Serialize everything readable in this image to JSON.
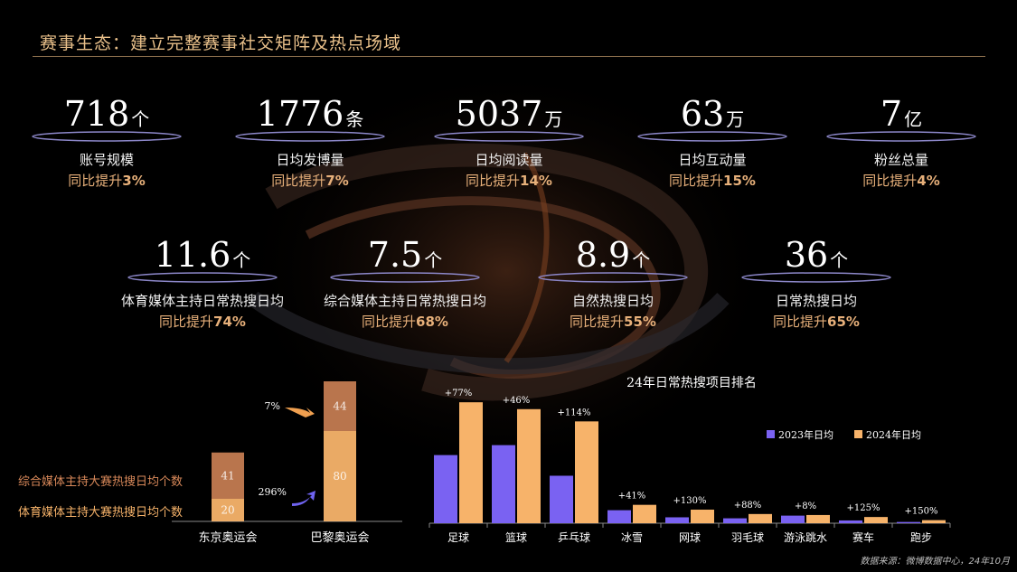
{
  "header": {
    "title": "赛事生态：建立完整赛事社交矩阵及热点场域"
  },
  "stats_row1": [
    {
      "value": "718",
      "unit": "个",
      "label": "账号规模",
      "growth_prefix": "同比提升",
      "growth": "3%"
    },
    {
      "value": "1776",
      "unit": "条",
      "label": "日均发博量",
      "growth_prefix": "同比提升",
      "growth": "7%"
    },
    {
      "value": "5037",
      "unit": "万",
      "label": "日均阅读量",
      "growth_prefix": "同比提升",
      "growth": "14%"
    },
    {
      "value": "63",
      "unit": "万",
      "label": "日均互动量",
      "growth_prefix": "同比提升",
      "growth": "15%"
    },
    {
      "value": "7",
      "unit": "亿",
      "label": "粉丝总量",
      "growth_prefix": "同比提升",
      "growth": "4%"
    }
  ],
  "stats_row2": [
    {
      "value": "11.6",
      "unit": "个",
      "label": "体育媒体主持日常热搜日均",
      "growth_prefix": "同比提升",
      "growth": "74%"
    },
    {
      "value": "7.5",
      "unit": "个",
      "label": "综合媒体主持日常热搜日均",
      "growth_prefix": "同比提升",
      "growth": "68%"
    },
    {
      "value": "8.9",
      "unit": "个",
      "label": "自然热搜日均",
      "growth_prefix": "同比提升",
      "growth": "55%"
    },
    {
      "value": "36",
      "unit": "个",
      "label": "日常热搜日均",
      "growth_prefix": "同比提升",
      "growth": "65%"
    }
  ],
  "chart_data": [
    {
      "type": "bar",
      "stacked": true,
      "categories": [
        "东京奥运会",
        "巴黎奥运会"
      ],
      "series": [
        {
          "name": "体育媒体主持大赛热搜日均个数",
          "values": [
            20,
            80
          ],
          "color": "#f7b36a"
        },
        {
          "name": "综合媒体主持大赛热搜日均个数",
          "values": [
            41,
            44
          ],
          "color": "#d9895a"
        }
      ],
      "annotations": [
        "7%",
        "296%"
      ],
      "legend": "left"
    },
    {
      "type": "bar",
      "title": "24年日常热搜项目排名",
      "categories": [
        "足球",
        "篮球",
        "乒乓球",
        "冰雪",
        "网球",
        "羽毛球",
        "游泳跳水",
        "赛车",
        "跑步"
      ],
      "series": [
        {
          "name": "2023年日均",
          "values": [
            8.9,
            10.2,
            6.2,
            1.7,
            0.77,
            0.64,
            0.99,
            0.36,
            0.16
          ],
          "color": "#7a62f2"
        },
        {
          "name": "2024年日均",
          "values": [
            15.8,
            14.9,
            13.3,
            2.4,
            1.77,
            1.2,
            1.07,
            0.81,
            0.4
          ],
          "color": "#f7b36a"
        }
      ],
      "growth_labels": [
        "+77%",
        "+46%",
        "+114%",
        "+41%",
        "+130%",
        "+88%",
        "+8%",
        "+125%",
        "+150%"
      ],
      "ylim": [
        0,
        17
      ],
      "legend": "right"
    }
  ],
  "footer": {
    "source": "数据来源：微博数据中心，24年10月"
  }
}
